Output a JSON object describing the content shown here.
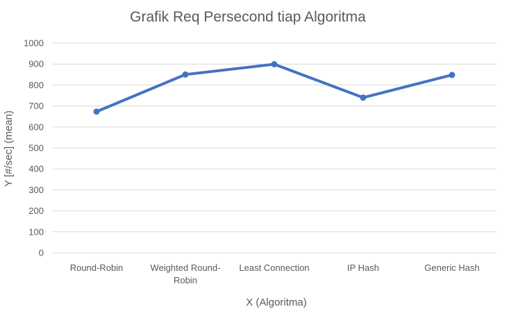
{
  "chart_data": {
    "type": "line",
    "title": "Grafik Req Persecond tiap Algoritma",
    "xlabel": "X (Algoritma)",
    "ylabel": "Y [#/sec] (mean)",
    "categories": [
      [
        "Round-Robin"
      ],
      [
        "Weighted Round-",
        "Robin"
      ],
      [
        "Least Connection"
      ],
      [
        "IP Hash"
      ],
      [
        "Generic Hash"
      ]
    ],
    "series": [
      {
        "values": [
          673,
          850,
          899,
          740,
          848
        ]
      }
    ],
    "ylim": [
      0,
      1000
    ],
    "yticks": [
      0,
      100,
      200,
      300,
      400,
      500,
      600,
      700,
      800,
      900,
      1000
    ],
    "grid": true,
    "legend": "none",
    "colors": {
      "series": "#4472c4",
      "grid": "#d9d9d9",
      "text": "#595959"
    }
  }
}
